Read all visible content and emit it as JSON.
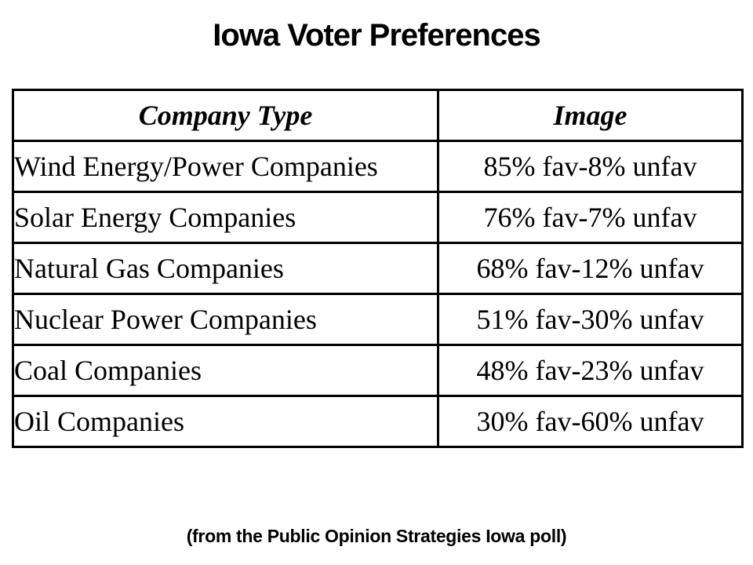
{
  "slide": {
    "title": "Iowa Voter Preferences",
    "footnote": "(from the Public Opinion Strategies Iowa poll)"
  },
  "table": {
    "headers": [
      "Company Type",
      "Image"
    ],
    "rows": [
      {
        "company": "Wind Energy/Power Companies",
        "image": "85% fav-8% unfav"
      },
      {
        "company": "Solar Energy Companies",
        "image": "76% fav-7% unfav"
      },
      {
        "company": "Natural Gas Companies",
        "image": "68% fav-12% unfav"
      },
      {
        "company": "Nuclear Power Companies",
        "image": "51% fav-30% unfav"
      },
      {
        "company": "Coal Companies",
        "image": "48% fav-23% unfav"
      },
      {
        "company": "Oil Companies",
        "image": "30% fav-60% unfav"
      }
    ]
  },
  "chart_data": {
    "type": "table",
    "title": "Iowa Voter Preferences",
    "columns": [
      "Company Type",
      "Image"
    ],
    "rows": [
      [
        "Wind Energy/Power Companies",
        "85% fav-8% unfav"
      ],
      [
        "Solar Energy Companies",
        "76% fav-7% unfav"
      ],
      [
        "Natural Gas Companies",
        "68% fav-12% unfav"
      ],
      [
        "Nuclear Power Companies",
        "51% fav-30% unfav"
      ],
      [
        "Coal Companies",
        "48% fav-23% unfav"
      ],
      [
        "Oil Companies",
        "30% fav-60% unfav"
      ]
    ],
    "favorability": [
      {
        "company": "Wind Energy/Power Companies",
        "fav_pct": 85,
        "unfav_pct": 8
      },
      {
        "company": "Solar Energy Companies",
        "fav_pct": 76,
        "unfav_pct": 7
      },
      {
        "company": "Natural Gas Companies",
        "fav_pct": 68,
        "unfav_pct": 12
      },
      {
        "company": "Nuclear Power Companies",
        "fav_pct": 51,
        "unfav_pct": 30
      },
      {
        "company": "Coal Companies",
        "fav_pct": 48,
        "unfav_pct": 23
      },
      {
        "company": "Oil Companies",
        "fav_pct": 30,
        "unfav_pct": 60
      }
    ],
    "source": "(from the Public Opinion Strategies Iowa poll)"
  },
  "colors": {
    "background": "#ffffff",
    "text": "#000000",
    "table_border": "#000000"
  }
}
